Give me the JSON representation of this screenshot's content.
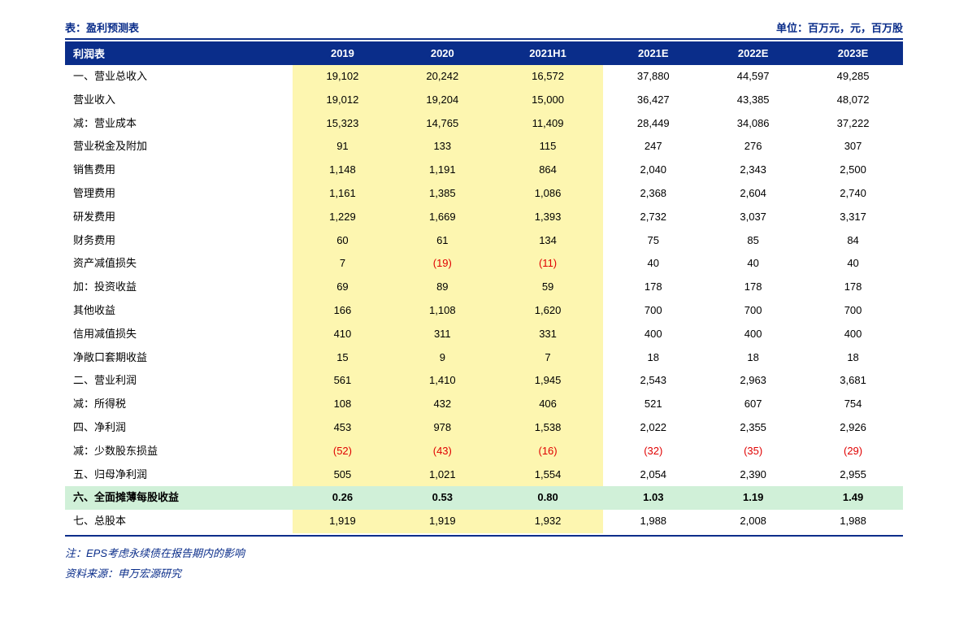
{
  "header": {
    "title": "表：盈利预测表",
    "unit": "单位：百万元，元，百万股"
  },
  "colors": {
    "primary": "#0a2d8a",
    "highlight_bg": "#fdf6b0",
    "eps_bg": "#d0f0d8",
    "negative": "#e00000",
    "background": "#ffffff"
  },
  "table": {
    "columns": [
      "利润表",
      "2019",
      "2020",
      "2021H1",
      "2021E",
      "2022E",
      "2023E"
    ],
    "rows": [
      {
        "label": "一、营业总收入",
        "values": [
          "19,102",
          "20,242",
          "16,572",
          "37,880",
          "44,597",
          "49,285"
        ]
      },
      {
        "label": "营业收入",
        "values": [
          "19,012",
          "19,204",
          "15,000",
          "36,427",
          "43,385",
          "48,072"
        ]
      },
      {
        "label": "减：营业成本",
        "values": [
          "15,323",
          "14,765",
          "11,409",
          "28,449",
          "34,086",
          "37,222"
        ]
      },
      {
        "label": "营业税金及附加",
        "values": [
          "91",
          "133",
          "115",
          "247",
          "276",
          "307"
        ]
      },
      {
        "label": "销售费用",
        "values": [
          "1,148",
          "1,191",
          "864",
          "2,040",
          "2,343",
          "2,500"
        ]
      },
      {
        "label": "管理费用",
        "values": [
          "1,161",
          "1,385",
          "1,086",
          "2,368",
          "2,604",
          "2,740"
        ]
      },
      {
        "label": "研发费用",
        "values": [
          "1,229",
          "1,669",
          "1,393",
          "2,732",
          "3,037",
          "3,317"
        ]
      },
      {
        "label": "财务费用",
        "values": [
          "60",
          "61",
          "134",
          "75",
          "85",
          "84"
        ]
      },
      {
        "label": "资产减值损失",
        "values": [
          "7",
          "(19)",
          "(11)",
          "40",
          "40",
          "40"
        ],
        "neg_idx": [
          1,
          2
        ]
      },
      {
        "label": "加：投资收益",
        "values": [
          "69",
          "89",
          "59",
          "178",
          "178",
          "178"
        ]
      },
      {
        "label": "其他收益",
        "values": [
          "166",
          "1,108",
          "1,620",
          "700",
          "700",
          "700"
        ]
      },
      {
        "label": "信用减值损失",
        "values": [
          "410",
          "311",
          "331",
          "400",
          "400",
          "400"
        ]
      },
      {
        "label": "净敞口套期收益",
        "values": [
          "15",
          "9",
          "7",
          "18",
          "18",
          "18"
        ]
      },
      {
        "label": "二、营业利润",
        "values": [
          "561",
          "1,410",
          "1,945",
          "2,543",
          "2,963",
          "3,681"
        ]
      },
      {
        "label": "减：所得税",
        "values": [
          "108",
          "432",
          "406",
          "521",
          "607",
          "754"
        ]
      },
      {
        "label": "四、净利润",
        "values": [
          "453",
          "978",
          "1,538",
          "2,022",
          "2,355",
          "2,926"
        ]
      },
      {
        "label": "减：少数股东损益",
        "values": [
          "(52)",
          "(43)",
          "(16)",
          "(32)",
          "(35)",
          "(29)"
        ],
        "neg_idx": [
          0,
          1,
          2,
          3,
          4,
          5
        ]
      },
      {
        "label": "五、归母净利润",
        "values": [
          "505",
          "1,021",
          "1,554",
          "2,054",
          "2,390",
          "2,955"
        ]
      },
      {
        "label": "六、全面摊薄每股收益",
        "values": [
          "0.26",
          "0.53",
          "0.80",
          "1.03",
          "1.19",
          "1.49"
        ],
        "eps": true
      },
      {
        "label": "七、总股本",
        "values": [
          "1,919",
          "1,919",
          "1,932",
          "1,988",
          "2,008",
          "1,988"
        ]
      }
    ]
  },
  "footnote": "注：EPS考虑永续债在报告期内的影响",
  "source": "资料来源：申万宏源研究"
}
